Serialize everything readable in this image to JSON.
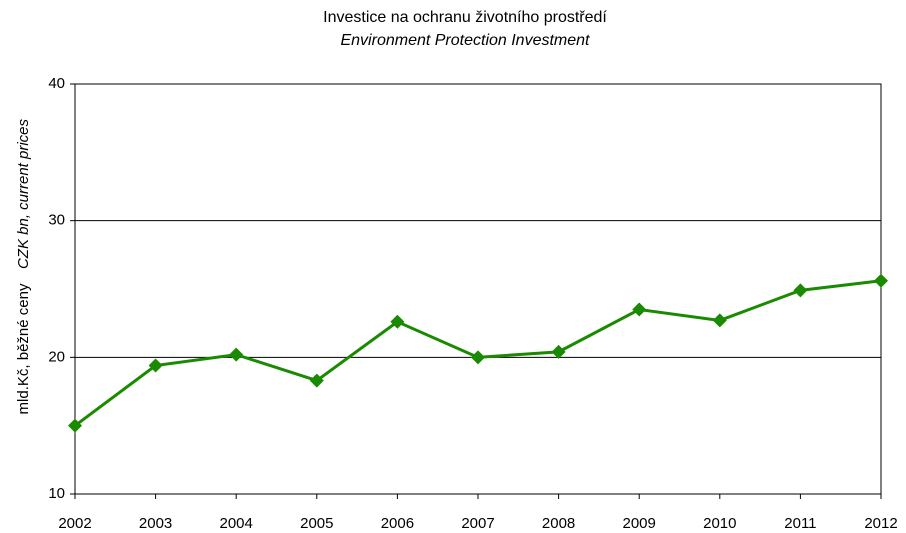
{
  "chart_data": {
    "type": "line",
    "title": "Investice na ochranu životního prostředí",
    "subtitle": "Environment Protection Investment",
    "y_label": "mld.Kč, běžné ceny",
    "y_label_en": "CZK bn, current prices",
    "categories": [
      "2002",
      "2003",
      "2004",
      "2005",
      "2006",
      "2007",
      "2008",
      "2009",
      "2010",
      "2011",
      "2012"
    ],
    "series": [
      {
        "name": "Environment Protection Investment",
        "color": "#1a8a00",
        "values": [
          15.0,
          19.4,
          20.2,
          18.3,
          22.6,
          20.0,
          20.4,
          23.5,
          22.7,
          24.9,
          25.6
        ]
      }
    ],
    "ylim": [
      10,
      40
    ],
    "yticks": [
      10,
      20,
      30,
      40
    ],
    "grid": true
  }
}
